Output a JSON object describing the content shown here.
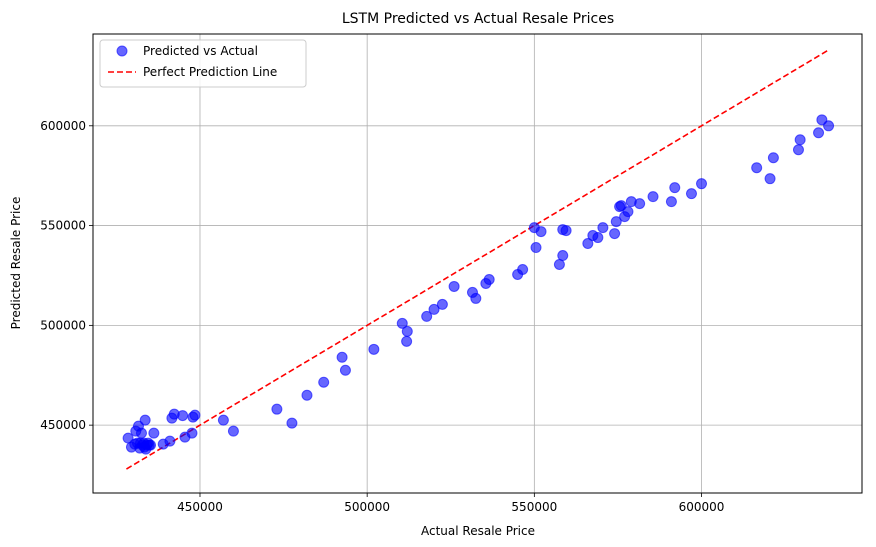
{
  "chart_data": {
    "type": "scatter",
    "title": "LSTM Predicted vs Actual Resale Prices",
    "xlabel": "Actual Resale Price",
    "ylabel": "Predicted Resale Price",
    "xlim": [
      418000,
      648000
    ],
    "ylim": [
      416000,
      646000
    ],
    "xticks": [
      450000,
      500000,
      550000,
      600000
    ],
    "yticks": [
      450000,
      500000,
      550000,
      600000
    ],
    "grid": true,
    "legend_position": "top-left",
    "series": [
      {
        "name": "Predicted vs Actual",
        "kind": "scatter",
        "color": "#0000ff",
        "alpha": 0.6,
        "points": [
          [
            428500,
            443500
          ],
          [
            429500,
            439000
          ],
          [
            430500,
            440500
          ],
          [
            430800,
            447000
          ],
          [
            431300,
            441000
          ],
          [
            431600,
            449500
          ],
          [
            432000,
            438500
          ],
          [
            432200,
            441000
          ],
          [
            432500,
            446000
          ],
          [
            432800,
            440000
          ],
          [
            433200,
            441000
          ],
          [
            433400,
            439000
          ],
          [
            433600,
            452500
          ],
          [
            433800,
            438000
          ],
          [
            434100,
            440000
          ],
          [
            434500,
            441000
          ],
          [
            434800,
            440000
          ],
          [
            435200,
            440000
          ],
          [
            436200,
            446000
          ],
          [
            439000,
            440500
          ],
          [
            441000,
            442000
          ],
          [
            441600,
            453500
          ],
          [
            442300,
            455500
          ],
          [
            444800,
            454800
          ],
          [
            445500,
            444000
          ],
          [
            447600,
            446000
          ],
          [
            447900,
            454000
          ],
          [
            448500,
            455000
          ],
          [
            457000,
            452500
          ],
          [
            460000,
            447000
          ],
          [
            473000,
            458000
          ],
          [
            477500,
            451000
          ],
          [
            482000,
            465000
          ],
          [
            487000,
            471500
          ],
          [
            492500,
            484000
          ],
          [
            493500,
            477500
          ],
          [
            502000,
            488000
          ],
          [
            510500,
            501000
          ],
          [
            512000,
            497000
          ],
          [
            511800,
            492000
          ],
          [
            517800,
            504500
          ],
          [
            520000,
            508000
          ],
          [
            522500,
            510500
          ],
          [
            526000,
            519500
          ],
          [
            531500,
            516500
          ],
          [
            532500,
            513500
          ],
          [
            535500,
            521000
          ],
          [
            536500,
            523000
          ],
          [
            545000,
            525500
          ],
          [
            546500,
            528000
          ],
          [
            550000,
            549000
          ],
          [
            550500,
            539000
          ],
          [
            552000,
            547000
          ],
          [
            557500,
            530500
          ],
          [
            558500,
            535000
          ],
          [
            558500,
            548000
          ],
          [
            559500,
            547500
          ],
          [
            566000,
            541000
          ],
          [
            567500,
            545000
          ],
          [
            569000,
            544000
          ],
          [
            570500,
            549000
          ],
          [
            574000,
            546000
          ],
          [
            574500,
            552000
          ],
          [
            575500,
            559500
          ],
          [
            576000,
            560000
          ],
          [
            577000,
            554500
          ],
          [
            578000,
            557000
          ],
          [
            579000,
            562000
          ],
          [
            581500,
            561000
          ],
          [
            585500,
            564500
          ],
          [
            591000,
            562000
          ],
          [
            592000,
            569000
          ],
          [
            597000,
            566000
          ],
          [
            600000,
            571000
          ],
          [
            616500,
            579000
          ],
          [
            620500,
            573500
          ],
          [
            621500,
            584000
          ],
          [
            629000,
            588000
          ],
          [
            629500,
            593000
          ],
          [
            635000,
            596500
          ],
          [
            636000,
            603000
          ],
          [
            638000,
            600000
          ]
        ]
      },
      {
        "name": "Perfect Prediction Line",
        "kind": "line",
        "style": "dashed",
        "color": "#ff0000",
        "x": [
          428000,
          638000
        ],
        "y": [
          428000,
          638000
        ]
      }
    ]
  }
}
